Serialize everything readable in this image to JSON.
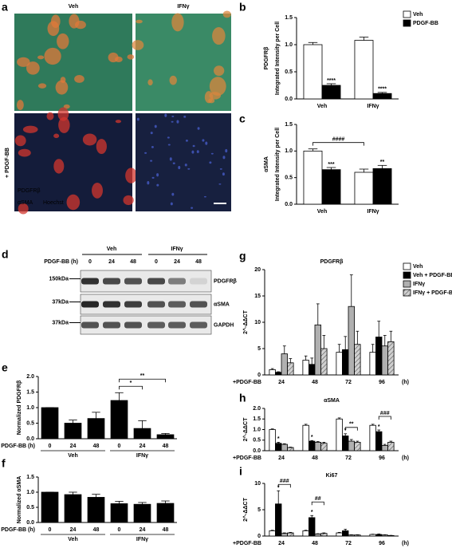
{
  "images": [
    {
      "label": "a",
      "columns": [
        "Veh",
        "IFNγ"
      ],
      "row_label": "+ PDGF-BB",
      "stains": [
        "PDGFRβ",
        "αSMA",
        "Hoechst"
      ]
    },
    {
      "label": "d",
      "groups": [
        "Veh",
        "IFNγ"
      ],
      "treatment_label": "PDGF-BB (h)",
      "lanes": [
        "0",
        "24",
        "48",
        "0",
        "24",
        "48"
      ],
      "rows": [
        {
          "marker": "150kDa",
          "name": "PDGFRβ"
        },
        {
          "marker": "37kDa",
          "name": "αSMA"
        },
        {
          "marker": "37kDa",
          "name": "GAPDH"
        }
      ]
    }
  ],
  "chart_data": [
    {
      "type": "bar",
      "label": "b",
      "protein": "PDGFRβ",
      "y_label": "Integrated Intensity per Cell",
      "legend": true,
      "categories": [
        "Veh",
        "IFNγ"
      ],
      "series": [
        {
          "name": "Veh",
          "color": "#ffffff",
          "values": [
            1.0,
            1.08
          ],
          "errors": [
            0.04,
            0.06
          ]
        },
        {
          "name": "PDGF-BB",
          "color": "#000000",
          "values": [
            0.25,
            0.1
          ],
          "errors": [
            0.03,
            0.02
          ],
          "significance": [
            "****",
            "****"
          ]
        }
      ],
      "ylim": [
        0,
        1.5
      ],
      "yticks": [
        {
          "value": 0,
          "label": "0.0"
        },
        {
          "value": 0.5,
          "label": "0.5"
        },
        {
          "value": 1,
          "label": "1.0"
        },
        {
          "value": 1.5,
          "label": "1.5"
        }
      ]
    },
    {
      "type": "bar",
      "label": "c",
      "protein": "αSMA",
      "y_label": "Integrated Intensity per Cell",
      "categories": [
        "Veh",
        "IFNγ"
      ],
      "series": [
        {
          "color": "#ffffff",
          "values": [
            1.0,
            0.6
          ],
          "errors": [
            0.04,
            0.06
          ]
        },
        {
          "color": "#000000",
          "values": [
            0.65,
            0.67
          ],
          "errors": [
            0.04,
            0.06
          ],
          "significance": [
            "***",
            "**"
          ]
        }
      ],
      "brackets": [
        {
          "text": "####",
          "from": [
            0,
            0
          ],
          "to": [
            0,
            1
          ]
        }
      ],
      "ylim": [
        0,
        1.5
      ],
      "yticks": [
        {
          "value": 0,
          "label": "0.0"
        },
        {
          "value": 0.5,
          "label": "0.5"
        },
        {
          "value": 1,
          "label": "1.0"
        },
        {
          "value": 1.5,
          "label": "1.5"
        }
      ]
    },
    {
      "type": "bar",
      "label": "e",
      "y_label": "Normalized PDGFRβ",
      "x_prefix": "+ PDGF-BB (h)",
      "categories": [
        "0",
        "24",
        "48",
        "0",
        "24",
        "48"
      ],
      "groups": [
        {
          "label": "Veh",
          "size": 3
        },
        {
          "label": "IFNγ",
          "size": 3
        }
      ],
      "series": [
        {
          "color": "#000000",
          "values": [
            1.0,
            0.5,
            0.65,
            1.23,
            0.33,
            0.13
          ],
          "errors": [
            0,
            0.1,
            0.2,
            0.25,
            0.25,
            0.04
          ]
        }
      ],
      "brackets": [
        {
          "text": "*",
          "from": [
            0,
            3
          ],
          "to": [
            0,
            4
          ]
        },
        {
          "text": "**",
          "from": [
            0,
            3
          ],
          "to": [
            0,
            5
          ]
        }
      ],
      "ylim": [
        0,
        2
      ],
      "yticks": [
        {
          "value": 0,
          "label": "0.0"
        },
        {
          "value": 0.5,
          "label": "0.5"
        },
        {
          "value": 1,
          "label": "1.0"
        },
        {
          "value": 1.5,
          "label": "1.5"
        },
        {
          "value": 2,
          "label": "2.0"
        }
      ]
    },
    {
      "type": "bar",
      "label": "f",
      "y_label": "Normalized αSMA",
      "x_prefix": "+ PDGF-BB (h)",
      "categories": [
        "0",
        "24",
        "48",
        "0",
        "24",
        "48"
      ],
      "groups": [
        {
          "label": "Veh",
          "size": 3
        },
        {
          "label": "IFNγ",
          "size": 3
        }
      ],
      "series": [
        {
          "color": "#000000",
          "values": [
            1.0,
            0.92,
            0.83,
            0.62,
            0.6,
            0.63
          ],
          "errors": [
            0,
            0.08,
            0.1,
            0.08,
            0.06,
            0.08
          ]
        }
      ],
      "ylim": [
        0,
        1.5
      ],
      "yticks": [
        {
          "value": 0,
          "label": "0.0"
        },
        {
          "value": 0.5,
          "label": "0.5"
        },
        {
          "value": 1,
          "label": "1.0"
        },
        {
          "value": 1.5,
          "label": "1.5"
        }
      ]
    },
    {
      "type": "bar",
      "label": "g",
      "title": "PDGFRβ",
      "y_label": "2^-ΔΔCT",
      "x_prefix": "+PDGF-BB",
      "x_suffix": "(h)",
      "legend": true,
      "categories": [
        "24",
        "48",
        "72",
        "96"
      ],
      "series": [
        {
          "name": "Veh",
          "color": "#ffffff",
          "values": [
            1.0,
            2.8,
            4.3,
            4.3
          ],
          "errors": [
            0.2,
            0.8,
            1.5,
            1.5
          ]
        },
        {
          "name": "Veh + PDGF-BB",
          "color": "#000000",
          "values": [
            0.5,
            2.0,
            4.8,
            7.2
          ],
          "errors": [
            0.1,
            1.2,
            2.5,
            3.0
          ]
        },
        {
          "name": "IFNγ",
          "color": "#b0b0b0",
          "values": [
            4.0,
            9.5,
            13.0,
            5.5
          ],
          "errors": [
            1.5,
            4.0,
            6.0,
            2.0
          ]
        },
        {
          "name": "IFNγ + PDGF-BB",
          "color": "#d0d0d0",
          "hatch": true,
          "values": [
            2.3,
            5.0,
            5.8,
            6.3
          ],
          "errors": [
            0.8,
            2.5,
            2.5,
            2.0
          ]
        }
      ],
      "ylim": [
        0,
        20
      ],
      "yticks": [
        0,
        5,
        10,
        15,
        20
      ]
    },
    {
      "type": "bar",
      "label": "h",
      "title": "αSMA",
      "y_label": "2^-ΔΔCT",
      "x_prefix": "+PDGF-BB",
      "x_suffix": "(h)",
      "categories": [
        "24",
        "48",
        "72",
        "96"
      ],
      "series": [
        {
          "color": "#ffffff",
          "values": [
            1.0,
            1.2,
            1.5,
            1.2
          ],
          "errors": [
            0.03,
            0.05,
            0.05,
            0.05
          ]
        },
        {
          "color": "#000000",
          "values": [
            0.35,
            0.45,
            0.7,
            0.9
          ],
          "errors": [
            0.05,
            0.03,
            0.1,
            0.08
          ],
          "significance": [
            "*",
            "*",
            "*",
            "*"
          ]
        },
        {
          "color": "#b0b0b0",
          "values": [
            0.3,
            0.4,
            0.45,
            0.25
          ],
          "errors": [
            0.03,
            0.03,
            0.08,
            0.05
          ]
        },
        {
          "color": "#d0d0d0",
          "hatch": true,
          "values": [
            0.15,
            0.35,
            0.4,
            0.4
          ],
          "errors": [
            0.02,
            0.05,
            0.05,
            0.05
          ]
        }
      ],
      "brackets": [
        {
          "text": "**",
          "from": [
            1,
            2
          ],
          "to": [
            3,
            2
          ]
        },
        {
          "text": "###",
          "from": [
            1,
            3
          ],
          "to": [
            3,
            3
          ]
        }
      ],
      "ylim": [
        0,
        2
      ],
      "yticks": [
        {
          "value": 0,
          "label": "0.0"
        },
        {
          "value": 0.5,
          "label": "0.5"
        },
        {
          "value": 1,
          "label": "1.0"
        },
        {
          "value": 1.5,
          "label": "1.5"
        },
        {
          "value": 2,
          "label": "2.0"
        }
      ]
    },
    {
      "type": "bar",
      "label": "i",
      "title": "Ki67",
      "y_label": "2^-ΔΔCT",
      "x_prefix": "+PDGF-BB",
      "x_suffix": "(h)",
      "categories": [
        "24",
        "48",
        "72",
        "96"
      ],
      "series": [
        {
          "color": "#ffffff",
          "values": [
            1.0,
            1.0,
            0.6,
            0.3
          ],
          "errors": [
            0.1,
            0.1,
            0.1,
            0.05
          ]
        },
        {
          "color": "#000000",
          "values": [
            6.1,
            3.5,
            1.0,
            0.3
          ],
          "errors": [
            2.5,
            0.4,
            0.3,
            0.1
          ],
          "significance": [
            "*",
            "*",
            null,
            null
          ]
        },
        {
          "color": "#b0b0b0",
          "values": [
            0.5,
            0.4,
            0.2,
            0.2
          ],
          "errors": [
            0.1,
            0.05,
            0.05,
            0.05
          ]
        },
        {
          "color": "#d0d0d0",
          "hatch": true,
          "values": [
            0.6,
            0.5,
            0.2,
            0.1
          ],
          "errors": [
            0.1,
            0.1,
            0.05,
            0.03
          ]
        }
      ],
      "brackets": [
        {
          "text": "###",
          "from": [
            1,
            0
          ],
          "to": [
            3,
            0
          ]
        },
        {
          "text": "##",
          "from": [
            1,
            1
          ],
          "to": [
            3,
            1
          ]
        }
      ],
      "ylim": [
        0,
        10
      ],
      "yticks": [
        0,
        5,
        10
      ]
    }
  ]
}
